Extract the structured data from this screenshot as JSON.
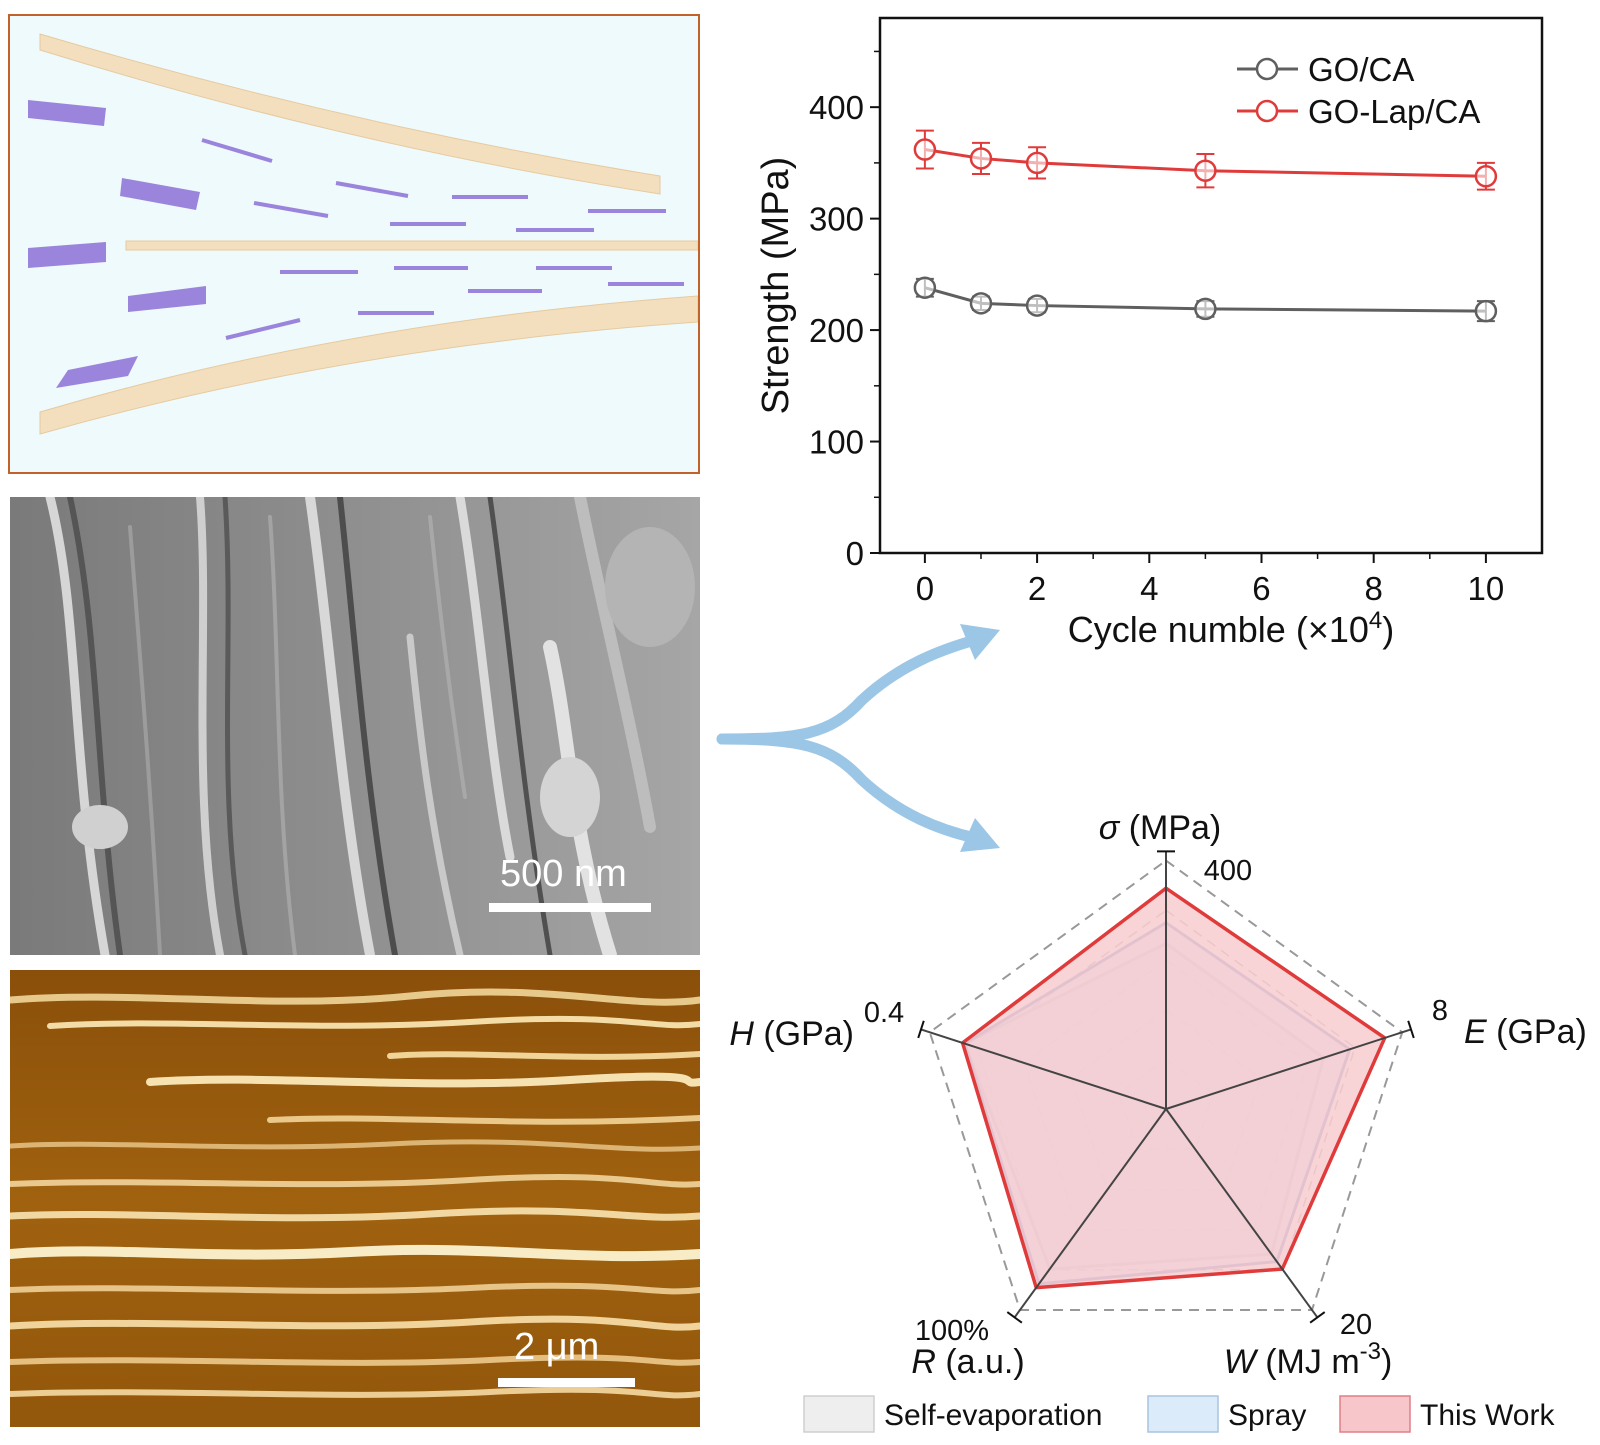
{
  "figure": {
    "sem_scale_label": "500 nm",
    "afm_scale_label": "2 μm"
  },
  "colors": {
    "go_ca": "#5f5f5f",
    "go_lap_ca": "#e03b3b",
    "arrow": "#9cc6e6",
    "schematic_border": "#c0622a",
    "self_evaporation_fill": "#eeeeee",
    "spray_fill": "#dcebfa",
    "this_work_fill": "#f7c6ca"
  },
  "chart_data": [
    {
      "type": "line",
      "title": "",
      "xlabel": "Cycle numble (×10",
      "xlabel_sup": "4",
      "xlabel_end": ")",
      "ylabel": "Strength (MPa)",
      "xlim": [
        -0.8,
        11
      ],
      "ylim": [
        0,
        480
      ],
      "xticks": [
        0,
        2,
        4,
        6,
        8,
        10
      ],
      "yticks": [
        0,
        100,
        200,
        300,
        400
      ],
      "grid": false,
      "legend_position": "top-right",
      "series": [
        {
          "name": "GO/CA",
          "x": [
            0,
            1,
            2,
            5,
            10
          ],
          "y": [
            238,
            224,
            222,
            219,
            217
          ],
          "error": [
            8,
            6,
            6,
            7,
            9
          ],
          "color": "#5f5f5f"
        },
        {
          "name": "GO-Lap/CA",
          "x": [
            0,
            1,
            2,
            5,
            10
          ],
          "y": [
            362,
            354,
            350,
            343,
            338
          ],
          "error": [
            17,
            14,
            14,
            15,
            12
          ],
          "color": "#e03b3b"
        }
      ]
    },
    {
      "type": "radar",
      "axes": [
        {
          "italic": "σ",
          "label": " (MPa)",
          "max_label": "400"
        },
        {
          "italic": "E",
          "label": " (GPa)",
          "max_label": "8"
        },
        {
          "italic": "W",
          "label": " (MJ m",
          "label_sup": "-3",
          "label_end": ")",
          "max_label": "20"
        },
        {
          "italic": "R",
          "label": " (a.u.)",
          "max_label": "100%"
        },
        {
          "italic": "H",
          "label": " (GPa)",
          "max_label": "0.4"
        }
      ],
      "grid_levels": 5,
      "series": [
        {
          "name": "Self-evaporation",
          "values": [
            0.72,
            0.72,
            0.78,
            0.86,
            0.92
          ]
        },
        {
          "name": "Spray",
          "values": [
            0.81,
            0.84,
            0.82,
            0.94,
            0.92
          ]
        },
        {
          "name": "This Work",
          "values": [
            0.96,
            1.0,
            0.86,
            0.96,
            0.93
          ]
        }
      ]
    }
  ]
}
